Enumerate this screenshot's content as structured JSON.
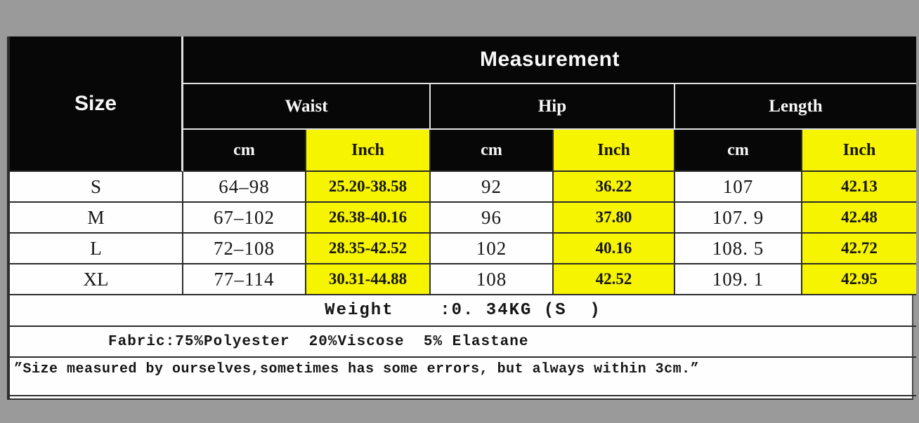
{
  "colors": {
    "page_bg": "#9a9a9a",
    "header_bg": "#070707",
    "highlight": "#f7f400",
    "grid_dark": "#2c2c2c",
    "grid_light": "#e2e2e2",
    "text": "#161616"
  },
  "table": {
    "size_header": "Size",
    "measurement_header": "Measurement",
    "groups": [
      {
        "label": "Waist"
      },
      {
        "label": "Hip"
      },
      {
        "label": "Length"
      }
    ],
    "units": {
      "cm": "cm",
      "inch": "Inch"
    },
    "rows": [
      {
        "size": "S",
        "waist_cm": "64–98",
        "waist_inch": "25.20-38.58",
        "hip_cm": "92",
        "hip_inch": "36.22",
        "length_cm": "107",
        "length_inch": "42.13"
      },
      {
        "size": "M",
        "waist_cm": "67–102",
        "waist_inch": "26.38-40.16",
        "hip_cm": "96",
        "hip_inch": "37.80",
        "length_cm": "107. 9",
        "length_inch": "42.48"
      },
      {
        "size": "L",
        "waist_cm": "72–108",
        "waist_inch": "28.35-42.52",
        "hip_cm": "102",
        "hip_inch": "40.16",
        "length_cm": "108. 5",
        "length_inch": "42.72"
      },
      {
        "size": "XL",
        "waist_cm": "77–114",
        "waist_inch": "30.31-44.88",
        "hip_cm": "108",
        "hip_inch": "42.52",
        "length_cm": "109. 1",
        "length_inch": "42.95"
      }
    ],
    "weight_line": "Weight    :0. 34KG (S  )",
    "fabric_line": "Fabric:75%Polyester  20%Viscose  5% Elastane",
    "note_line": "”Size measured by ourselves,sometimes has some errors, but always within 3cm.”"
  },
  "chart_data": {
    "type": "table",
    "title": "Measurement",
    "columns": [
      "Size",
      "Waist cm",
      "Waist Inch",
      "Hip cm",
      "Hip Inch",
      "Length cm",
      "Length Inch"
    ],
    "rows": [
      [
        "S",
        "64-98",
        "25.20-38.58",
        92,
        36.22,
        107,
        42.13
      ],
      [
        "M",
        "67-102",
        "26.38-40.16",
        96,
        37.8,
        107.9,
        42.48
      ],
      [
        "L",
        "72-108",
        "28.35-42.52",
        102,
        40.16,
        108.5,
        42.72
      ],
      [
        "XL",
        "77-114",
        "30.31-44.88",
        108,
        42.52,
        109.1,
        42.95
      ]
    ],
    "footer_lines": [
      "Weight :0.34KG (S )",
      "Fabric:75%Polyester 20%Viscose 5% Elastane",
      "Size measured by ourselves,sometimes has some errors, but always within 3cm."
    ]
  }
}
